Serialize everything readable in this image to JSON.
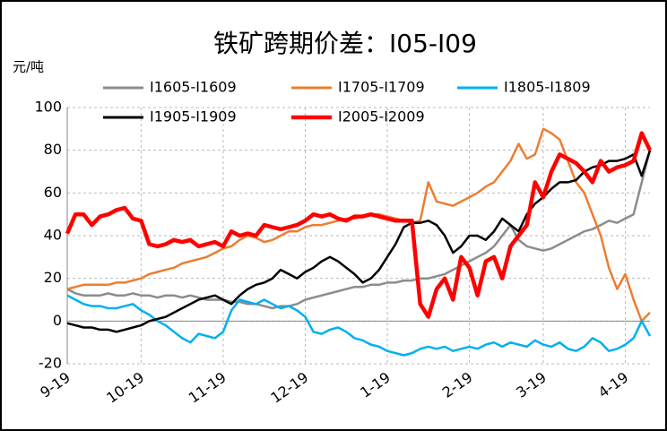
{
  "chart_data": {
    "type": "line",
    "title": "铁矿跨期价差：I05-I09",
    "y_axis_label": "元/吨",
    "categories": [
      "9-19",
      null,
      null,
      null,
      null,
      null,
      null,
      null,
      null,
      "10-19",
      null,
      null,
      null,
      null,
      null,
      null,
      null,
      null,
      null,
      "11-19",
      null,
      null,
      null,
      null,
      null,
      null,
      null,
      null,
      null,
      "12-19",
      null,
      null,
      null,
      null,
      null,
      null,
      null,
      null,
      null,
      "1-19",
      null,
      null,
      null,
      null,
      null,
      null,
      null,
      null,
      null,
      "2-19",
      null,
      null,
      null,
      null,
      null,
      null,
      null,
      null,
      "3-19",
      null,
      null,
      null,
      null,
      null,
      null,
      null,
      null,
      null,
      "4-19",
      null,
      null,
      null
    ],
    "series": [
      {
        "name": "I1605-I1609",
        "color": "#8c8c8c",
        "values": [
          15,
          13,
          12,
          12,
          12,
          13,
          12,
          12,
          13,
          12,
          12,
          11,
          12,
          12,
          11,
          12,
          11,
          10,
          10,
          10,
          9,
          9,
          8,
          8,
          7,
          6,
          7,
          7,
          8,
          10,
          11,
          12,
          13,
          14,
          15,
          16,
          16,
          17,
          17,
          18,
          18,
          19,
          19,
          20,
          20,
          21,
          22,
          24,
          26,
          28,
          30,
          32,
          35,
          40,
          45,
          38,
          35,
          34,
          33,
          34,
          36,
          38,
          40,
          42,
          43,
          45,
          47,
          46,
          48,
          50,
          65,
          80
        ]
      },
      {
        "name": "I1705-I1709",
        "color": "#ed7d31",
        "values": [
          15,
          16,
          17,
          17,
          17,
          17,
          18,
          18,
          19,
          20,
          22,
          23,
          24,
          25,
          27,
          28,
          29,
          30,
          32,
          34,
          35,
          38,
          40,
          39,
          37,
          38,
          40,
          42,
          42,
          44,
          45,
          45,
          46,
          47,
          48,
          48,
          49,
          50,
          50,
          49,
          48,
          47,
          46,
          47,
          65,
          56,
          55,
          54,
          56,
          58,
          60,
          63,
          65,
          70,
          75,
          83,
          76,
          78,
          90,
          88,
          85,
          75,
          65,
          60,
          50,
          40,
          25,
          15,
          22,
          10,
          0,
          4
        ]
      },
      {
        "name": "I1805-I1809",
        "color": "#00b0f0",
        "values": [
          12,
          10,
          8,
          7,
          7,
          6,
          6,
          7,
          8,
          5,
          3,
          0,
          -2,
          -5,
          -8,
          -10,
          -6,
          -7,
          -8,
          -5,
          5,
          10,
          9,
          8,
          10,
          8,
          6,
          7,
          5,
          2,
          -5,
          -6,
          -4,
          -3,
          -5,
          -8,
          -9,
          -11,
          -12,
          -14,
          -15,
          -16,
          -15,
          -13,
          -12,
          -13,
          -12,
          -14,
          -13,
          -12,
          -13,
          -11,
          -10,
          -12,
          -10,
          -11,
          -12,
          -9,
          -11,
          -12,
          -10,
          -13,
          -14,
          -12,
          -8,
          -10,
          -14,
          -13,
          -11,
          -8,
          0,
          -7
        ]
      },
      {
        "name": "I1905-I1909",
        "color": "#000000",
        "values": [
          -1,
          -2,
          -3,
          -3,
          -4,
          -4,
          -5,
          -4,
          -3,
          -2,
          0,
          1,
          2,
          4,
          6,
          8,
          10,
          11,
          12,
          10,
          8,
          12,
          15,
          17,
          18,
          20,
          24,
          22,
          20,
          23,
          25,
          28,
          30,
          28,
          25,
          22,
          18,
          20,
          24,
          30,
          36,
          44,
          46,
          46,
          47,
          45,
          40,
          32,
          35,
          40,
          40,
          38,
          42,
          48,
          45,
          42,
          50,
          55,
          58,
          62,
          65,
          65,
          66,
          70,
          72,
          73,
          75,
          75,
          76,
          78,
          68,
          80
        ]
      },
      {
        "name": "I2005-I2009",
        "color": "#ff0000",
        "values": [
          41,
          50,
          50,
          45,
          49,
          50,
          52,
          53,
          48,
          47,
          36,
          35,
          36,
          38,
          37,
          38,
          35,
          36,
          37,
          35,
          42,
          40,
          41,
          40,
          45,
          44,
          43,
          44,
          45,
          47,
          50,
          49,
          50,
          48,
          47,
          49,
          49,
          50,
          49,
          48,
          47,
          47,
          47,
          8,
          2,
          15,
          20,
          10,
          30,
          25,
          12,
          28,
          30,
          20,
          35,
          40,
          45,
          65,
          58,
          70,
          78,
          76,
          74,
          70,
          65,
          75,
          70,
          72,
          73,
          75,
          88,
          80
        ]
      }
    ],
    "ylim": [
      -20,
      100
    ],
    "yticks": [
      -20,
      0,
      20,
      40,
      60,
      80,
      100
    ],
    "grid": true,
    "legend": "top"
  }
}
